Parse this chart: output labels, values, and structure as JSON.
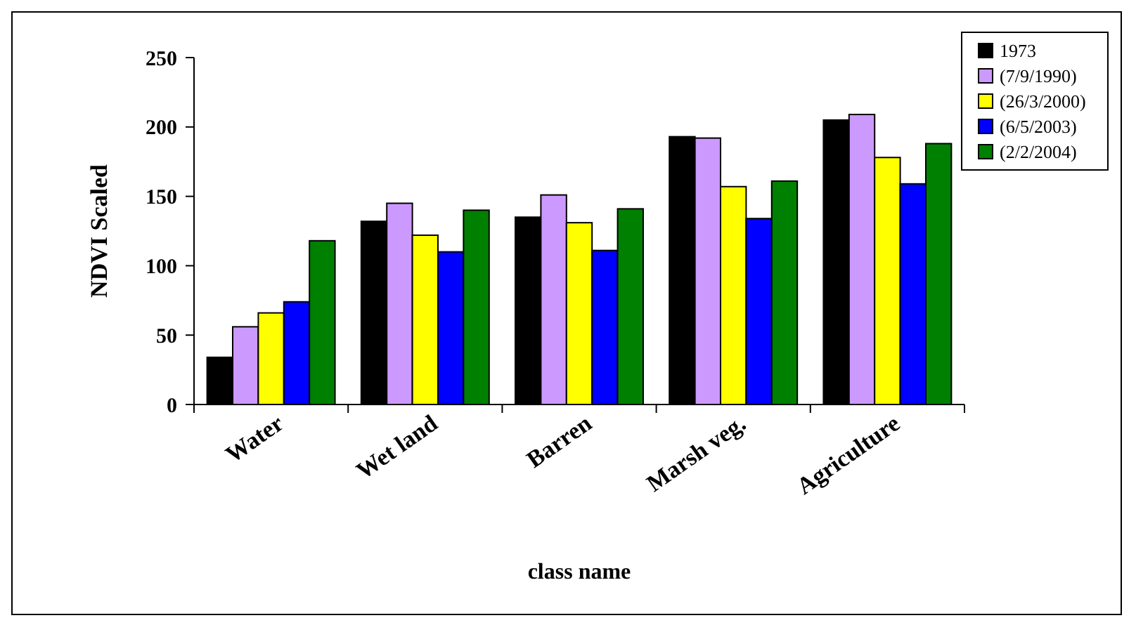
{
  "chart_data": {
    "type": "bar",
    "xlabel": "class name",
    "ylabel": "NDVI Scaled",
    "categories": [
      "Water",
      "Wet land",
      "Barren",
      "Marsh veg.",
      "Agriculture"
    ],
    "series": [
      {
        "name": "1973",
        "color": "#000000",
        "values": [
          34,
          132,
          135,
          193,
          205
        ]
      },
      {
        "name": "(7/9/1990)",
        "color": "#cc99ff",
        "values": [
          56,
          145,
          151,
          192,
          209
        ]
      },
      {
        "name": "(26/3/2000)",
        "color": "#ffff00",
        "values": [
          66,
          122,
          131,
          157,
          178
        ]
      },
      {
        "name": "(6/5/2003)",
        "color": "#0000ff",
        "values": [
          74,
          110,
          111,
          134,
          159
        ]
      },
      {
        "name": "(2/2/2004)",
        "color": "#008000",
        "values": [
          118,
          140,
          141,
          161,
          188
        ]
      }
    ],
    "ylim": [
      0,
      250
    ],
    "yticks": [
      0,
      50,
      100,
      150,
      200,
      250
    ],
    "grid": false,
    "legend": "top right"
  }
}
